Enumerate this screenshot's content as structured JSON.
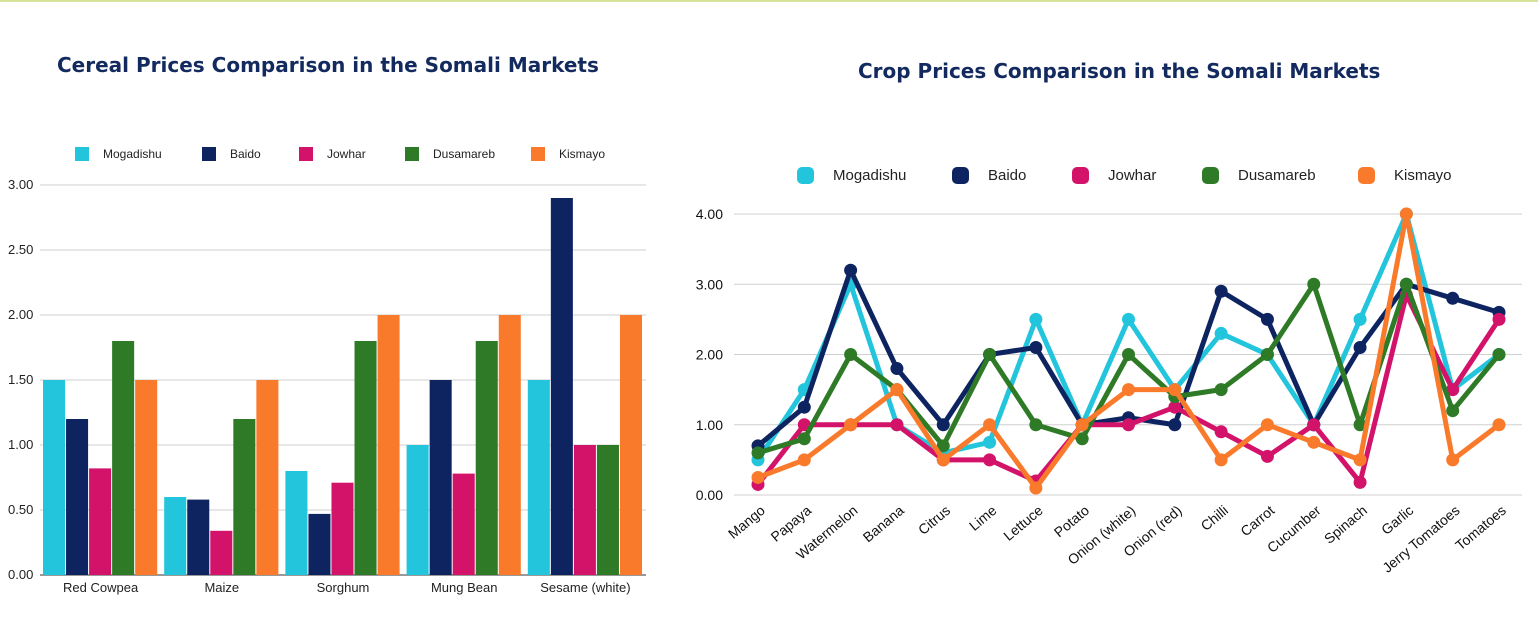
{
  "chart_data": [
    {
      "type": "bar",
      "title": "Cereal Prices Comparison in the Somali Markets",
      "categories": [
        "Red Cowpea",
        "Maize",
        "Sorghum",
        "Mung Bean",
        "Sesame (white)"
      ],
      "series": [
        {
          "name": "Mogadishu",
          "color": "#22c5dc",
          "values": [
            1.5,
            0.6,
            0.8,
            1.0,
            1.5
          ]
        },
        {
          "name": "Baido",
          "color": "#0d2461",
          "values": [
            1.2,
            0.58,
            0.47,
            1.5,
            2.9
          ]
        },
        {
          "name": "Jowhar",
          "color": "#d3136a",
          "values": [
            0.82,
            0.34,
            0.71,
            0.78,
            1.0
          ]
        },
        {
          "name": "Dusamareb",
          "color": "#2e7a26",
          "values": [
            1.8,
            1.2,
            1.8,
            1.8,
            1.0
          ]
        },
        {
          "name": "Kismayo",
          "color": "#fa7a2c",
          "values": [
            1.5,
            1.5,
            2.0,
            2.0,
            2.0
          ]
        }
      ],
      "ylim": [
        0,
        3
      ],
      "yticks": [
        "0.00",
        "0.50",
        "1.00",
        "1.50",
        "2.00",
        "2.50",
        "3.00"
      ],
      "legend": "top",
      "grid": true
    },
    {
      "type": "line",
      "title": "Crop Prices Comparison in the Somali Markets",
      "categories": [
        "Mango",
        "Papaya",
        "Watermelon",
        "Banana",
        "Citrus",
        "Lime",
        "Lettuce",
        "Potato",
        "Onion (white)",
        "Onion (red)",
        "Chilli",
        "Carrot",
        "Cucumber",
        "Spinach",
        "Garlic",
        "Jerry Tomatoes",
        "Tomatoes"
      ],
      "series": [
        {
          "name": "Mogadishu",
          "color": "#22c5dc",
          "values": [
            0.5,
            1.5,
            3.0,
            1.0,
            0.6,
            0.75,
            2.5,
            1.0,
            2.5,
            1.5,
            2.3,
            2.0,
            1.0,
            2.5,
            4.0,
            1.5,
            2.0
          ]
        },
        {
          "name": "Baido",
          "color": "#0d2461",
          "values": [
            0.7,
            1.25,
            3.2,
            1.8,
            1.0,
            2.0,
            2.1,
            1.0,
            1.1,
            1.0,
            2.9,
            2.5,
            1.0,
            2.1,
            3.0,
            2.8,
            2.6
          ]
        },
        {
          "name": "Jowhar",
          "color": "#d3136a",
          "values": [
            0.15,
            1.0,
            1.0,
            1.0,
            0.5,
            0.5,
            0.2,
            1.0,
            1.0,
            1.25,
            0.9,
            0.55,
            1.0,
            0.18,
            2.85,
            1.5,
            2.5
          ]
        },
        {
          "name": "Dusamareb",
          "color": "#2e7a26",
          "values": [
            0.6,
            0.8,
            2.0,
            1.5,
            0.7,
            2.0,
            1.0,
            0.8,
            2.0,
            1.4,
            1.5,
            2.0,
            3.0,
            1.0,
            3.0,
            1.2,
            2.0
          ]
        },
        {
          "name": "Kismayo",
          "color": "#fa7a2c",
          "values": [
            0.25,
            0.5,
            1.0,
            1.5,
            0.5,
            1.0,
            0.1,
            1.0,
            1.5,
            1.5,
            0.5,
            1.0,
            0.75,
            0.5,
            4.0,
            0.5,
            1.0
          ]
        }
      ],
      "ylim": [
        0,
        4
      ],
      "yticks": [
        "0.00",
        "1.00",
        "2.00",
        "3.00",
        "4.00"
      ],
      "legend": "top",
      "grid": true
    }
  ]
}
